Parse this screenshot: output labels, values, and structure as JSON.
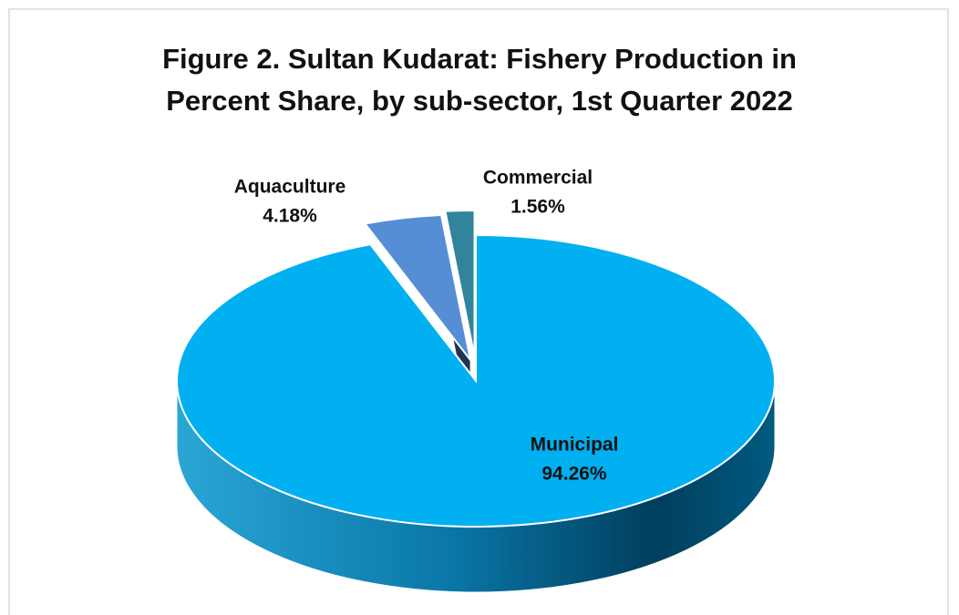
{
  "chart_data": {
    "type": "pie",
    "title": "Figure 2. Sultan Kudarat: Fishery Production in Percent Share, by sub-sector, 1st Quarter 2022",
    "categories": [
      "Municipal",
      "Aquaculture",
      "Commercial"
    ],
    "values": [
      94.26,
      4.18,
      1.56
    ],
    "value_labels": [
      "94.26%",
      "4.18%",
      "1.56%"
    ],
    "colors": [
      "#00b0f0",
      "#558ed5",
      "#31849b"
    ]
  }
}
